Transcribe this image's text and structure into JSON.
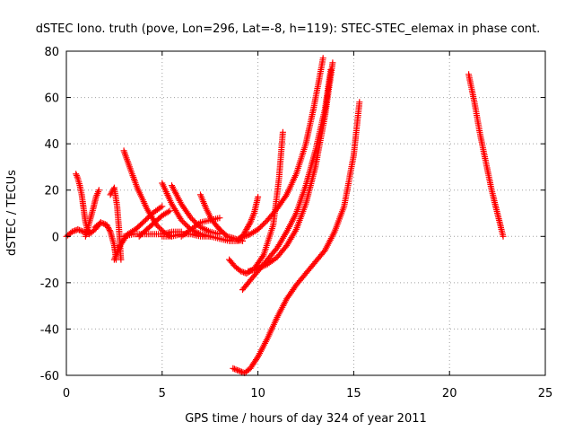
{
  "chart_data": {
    "type": "scatter",
    "title": "dSTEC Iono. truth (pove, Lon=296, Lat=-8, h=119): STEC-STEC_elemax in phase cont.",
    "xlabel": "GPS time / hours of day 324 of year 2011",
    "ylabel": "dSTEC  / TECUs",
    "xlim": [
      0,
      25
    ],
    "ylim": [
      -60,
      80
    ],
    "x_ticks": [
      0,
      5,
      10,
      15,
      20,
      25
    ],
    "y_ticks": [
      -60,
      -40,
      -20,
      0,
      20,
      40,
      60,
      80
    ],
    "grid": true,
    "marker": "plus",
    "color": "#ff0000",
    "series": [
      {
        "x": [
          0.0,
          0.3,
          0.6,
          0.9,
          1.2,
          1.5,
          1.8
        ],
        "y": [
          0,
          2,
          3,
          2,
          1,
          3,
          6
        ]
      },
      {
        "x": [
          0.5,
          0.6,
          0.7,
          0.8,
          0.9,
          1.0,
          1.1,
          1.2
        ],
        "y": [
          27,
          25,
          22,
          18,
          12,
          6,
          3,
          2
        ]
      },
      {
        "x": [
          1.0,
          1.2,
          1.4,
          1.55,
          1.7
        ],
        "y": [
          0,
          6,
          12,
          17,
          20
        ]
      },
      {
        "x": [
          1.5,
          1.8,
          2.1,
          2.3,
          2.5,
          2.6
        ],
        "y": [
          4,
          6,
          5,
          2,
          -4,
          -10
        ]
      },
      {
        "x": [
          2.3,
          2.5,
          2.65,
          2.75,
          2.85
        ],
        "y": [
          18,
          21,
          13,
          3,
          -10
        ]
      },
      {
        "x": [
          2.5,
          2.8,
          3.2,
          3.6,
          4.0,
          4.5,
          5.0
        ],
        "y": [
          -10,
          -4,
          1,
          3,
          6,
          10,
          13
        ]
      },
      {
        "x": [
          3.0,
          3.3,
          3.7,
          4.2,
          4.7,
          5.2,
          5.5
        ],
        "y": [
          37,
          30,
          21,
          12,
          5,
          1,
          0
        ]
      },
      {
        "x": [
          3.0,
          3.5,
          4.0,
          4.5,
          5.0,
          5.5,
          6.0
        ],
        "y": [
          0,
          1,
          1,
          1,
          1,
          2,
          2
        ]
      },
      {
        "x": [
          3.8,
          4.2,
          4.6,
          5.0,
          5.4
        ],
        "y": [
          0,
          3,
          6,
          9,
          11
        ]
      },
      {
        "x": [
          5.0,
          5.5,
          6.0,
          6.5,
          7.0,
          7.5
        ],
        "y": [
          23,
          14,
          7,
          3,
          1,
          0
        ]
      },
      {
        "x": [
          5.5,
          6.0,
          6.5,
          7.0,
          7.5,
          8.0
        ],
        "y": [
          22,
          14,
          8,
          4,
          2,
          1
        ]
      },
      {
        "x": [
          5.0,
          5.5,
          6.0,
          6.5,
          7.0,
          7.5,
          8.0,
          8.5,
          9.0
        ],
        "y": [
          0,
          0,
          1,
          1,
          0,
          0,
          -1,
          -2,
          -2
        ]
      },
      {
        "x": [
          6.0,
          6.5,
          7.0,
          7.5,
          8.0
        ],
        "y": [
          0,
          3,
          6,
          7,
          8
        ]
      },
      {
        "x": [
          7.0,
          7.3,
          7.6,
          8.0,
          8.4,
          8.8,
          9.2
        ],
        "y": [
          18,
          12,
          7,
          3,
          0,
          -1,
          -2
        ]
      },
      {
        "x": [
          9.0,
          9.2,
          9.4,
          9.6,
          9.8,
          10.0
        ],
        "y": [
          -1,
          0,
          3,
          6,
          10,
          17
        ]
      },
      {
        "x": [
          8.5,
          8.8,
          9.1,
          9.4,
          9.8,
          10.3,
          10.8,
          11.1,
          11.3
        ],
        "y": [
          -10,
          -13,
          -15,
          -16,
          -14,
          -8,
          5,
          25,
          45
        ]
      },
      {
        "x": [
          9.0,
          9.3,
          9.6,
          10.0,
          10.5,
          11.0,
          11.5,
          12.0,
          12.5,
          12.9,
          13.2,
          13.4
        ],
        "y": [
          -1,
          0,
          1,
          3,
          7,
          12,
          18,
          27,
          40,
          55,
          68,
          77
        ]
      },
      {
        "x": [
          9.5,
          10.0,
          10.5,
          11.0,
          11.5,
          12.0,
          12.5,
          13.0,
          13.5,
          13.9
        ],
        "y": [
          -15,
          -14,
          -12,
          -9,
          -4,
          3,
          14,
          30,
          52,
          75
        ]
      },
      {
        "x": [
          9.2,
          9.5,
          10.0,
          10.5,
          11.0,
          11.5,
          12.0,
          12.5,
          13.0,
          13.5,
          13.8
        ],
        "y": [
          -23,
          -20,
          -15,
          -10,
          -5,
          2,
          10,
          22,
          37,
          55,
          72
        ]
      },
      {
        "x": [
          8.7,
          9.0,
          9.3,
          9.6,
          10.0,
          10.5,
          11.0,
          11.5,
          12.0,
          12.5,
          13.0,
          13.5,
          14.0,
          14.5,
          15.0,
          15.3
        ],
        "y": [
          -57,
          -58,
          -59,
          -57,
          -52,
          -44,
          -35,
          -27,
          -21,
          -16,
          -11,
          -6,
          2,
          13,
          35,
          58
        ]
      },
      {
        "x": [
          21.0,
          21.3,
          21.6,
          21.9,
          22.2,
          22.5,
          22.8
        ],
        "y": [
          70,
          58,
          44,
          32,
          20,
          10,
          0
        ]
      }
    ]
  }
}
